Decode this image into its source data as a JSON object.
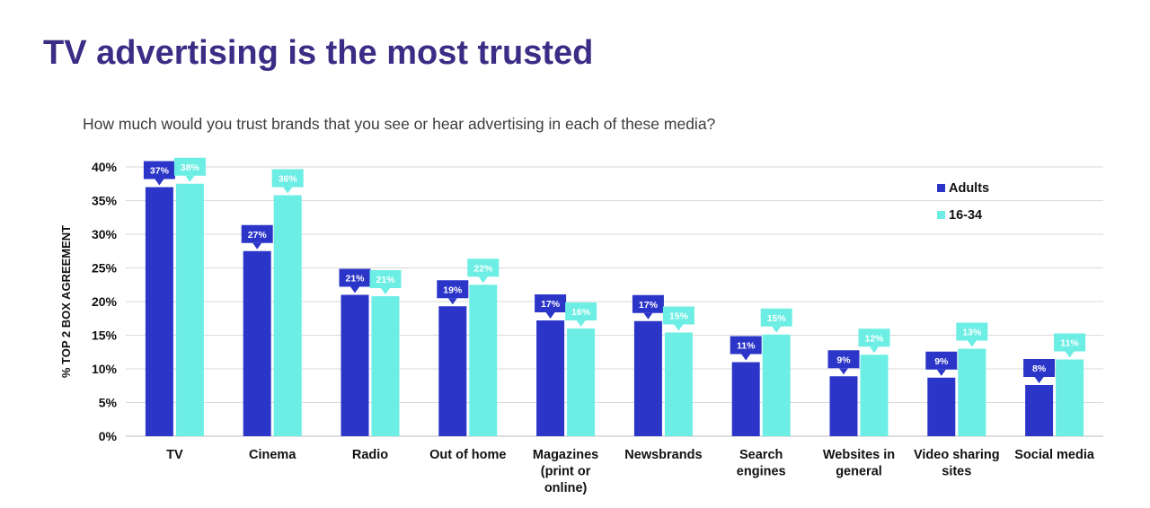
{
  "title": "TV advertising is the most trusted",
  "subtitle": "How much would you trust brands that you see or hear advertising in each of these media?",
  "chart_data": {
    "type": "bar",
    "title": "",
    "ylabel": "% TOP 2 BOX AGREEMENT",
    "xlabel": "",
    "ylim": [
      0,
      40
    ],
    "y_ticks": [
      "0%",
      "5%",
      "10%",
      "15%",
      "20%",
      "25%",
      "30%",
      "35%",
      "40%"
    ],
    "grid": true,
    "legend_position": "top-right",
    "categories": [
      [
        "TV"
      ],
      [
        "Cinema"
      ],
      [
        "Radio"
      ],
      [
        "Out of home"
      ],
      [
        "Magazines",
        "(print or",
        "online)"
      ],
      [
        "Newsbrands"
      ],
      [
        "Search",
        "engines"
      ],
      [
        "Websites in",
        "general"
      ],
      [
        "Video sharing",
        "sites"
      ],
      [
        "Social media"
      ]
    ],
    "series": [
      {
        "name": "Adults",
        "color": "#2b35c8",
        "values": [
          37,
          27.5,
          21,
          19.3,
          17.2,
          17.1,
          11,
          8.9,
          8.7,
          7.6
        ],
        "labels": [
          "37%",
          "27%",
          "21%",
          "19%",
          "17%",
          "17%",
          "11%",
          "9%",
          "9%",
          "8%"
        ]
      },
      {
        "name": "16-34",
        "color": "#6ceee4",
        "values": [
          37.5,
          35.8,
          20.8,
          22.5,
          16,
          15.4,
          15.1,
          12.1,
          13,
          11.4
        ],
        "labels": [
          "38%",
          "36%",
          "21%",
          "22%",
          "16%",
          "15%",
          "15%",
          "12%",
          "13%",
          "11%"
        ]
      }
    ]
  }
}
